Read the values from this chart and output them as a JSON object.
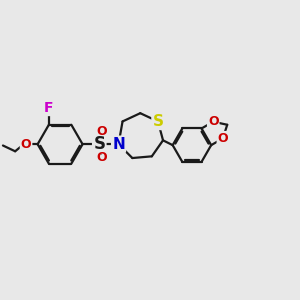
{
  "bg_color": "#e8e8e8",
  "bond_color": "#1a1a1a",
  "bond_width": 1.6,
  "F_color": "#cc00cc",
  "O_color": "#cc0000",
  "N_color": "#0000cc",
  "S_thiazepane_color": "#cccc00",
  "font_size": 10,
  "xlim": [
    -3.8,
    5.5
  ],
  "ylim": [
    -2.8,
    2.8
  ]
}
